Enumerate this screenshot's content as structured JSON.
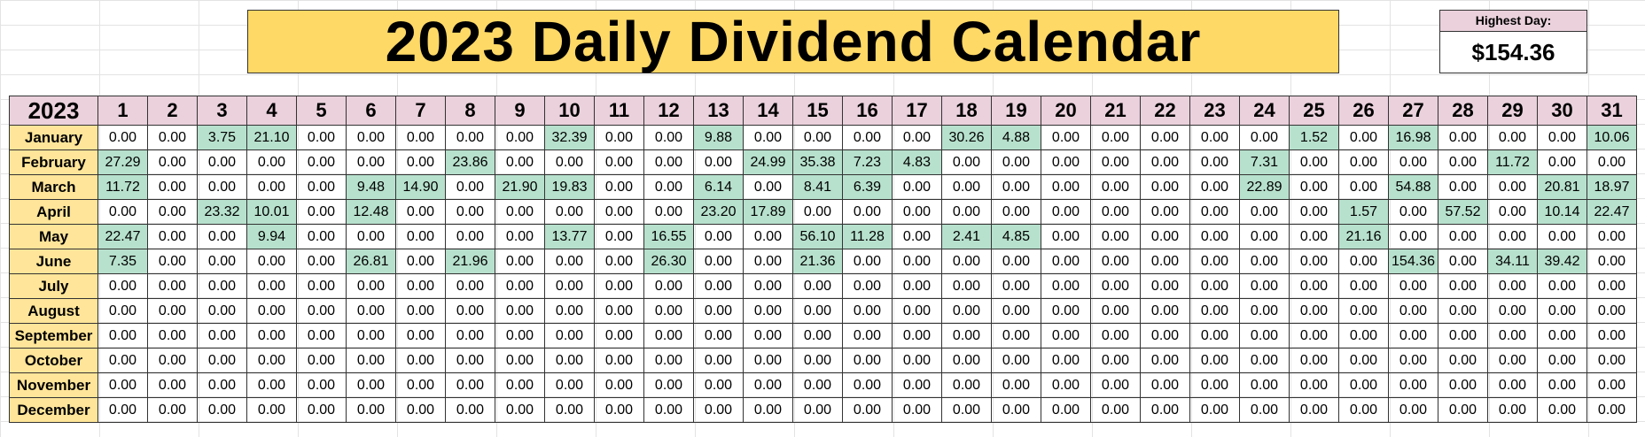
{
  "title": "2023 Daily Dividend Calendar",
  "highest": {
    "label": "Highest Day:",
    "value": "$154.36"
  },
  "calendar": {
    "year": "2023",
    "days": [
      "1",
      "2",
      "3",
      "4",
      "5",
      "6",
      "7",
      "8",
      "9",
      "10",
      "11",
      "12",
      "13",
      "14",
      "15",
      "16",
      "17",
      "18",
      "19",
      "20",
      "21",
      "22",
      "23",
      "24",
      "25",
      "26",
      "27",
      "28",
      "29",
      "30",
      "31"
    ],
    "highlight_color": "#b7e1cd",
    "header_color": "#ead1dc",
    "month_color": "#ffe599",
    "banner_color": "#ffd966",
    "months": [
      {
        "name": "January",
        "values": [
          "0.00",
          "0.00",
          "3.75",
          "21.10",
          "0.00",
          "0.00",
          "0.00",
          "0.00",
          "0.00",
          "32.39",
          "0.00",
          "0.00",
          "9.88",
          "0.00",
          "0.00",
          "0.00",
          "0.00",
          "30.26",
          "4.88",
          "0.00",
          "0.00",
          "0.00",
          "0.00",
          "0.00",
          "1.52",
          "0.00",
          "16.98",
          "0.00",
          "0.00",
          "0.00",
          "10.06"
        ]
      },
      {
        "name": "February",
        "values": [
          "27.29",
          "0.00",
          "0.00",
          "0.00",
          "0.00",
          "0.00",
          "0.00",
          "23.86",
          "0.00",
          "0.00",
          "0.00",
          "0.00",
          "0.00",
          "24.99",
          "35.38",
          "7.23",
          "4.83",
          "0.00",
          "0.00",
          "0.00",
          "0.00",
          "0.00",
          "0.00",
          "7.31",
          "0.00",
          "0.00",
          "0.00",
          "0.00",
          "11.72",
          "0.00",
          "0.00"
        ]
      },
      {
        "name": "March",
        "values": [
          "11.72",
          "0.00",
          "0.00",
          "0.00",
          "0.00",
          "9.48",
          "14.90",
          "0.00",
          "21.90",
          "19.83",
          "0.00",
          "0.00",
          "6.14",
          "0.00",
          "8.41",
          "6.39",
          "0.00",
          "0.00",
          "0.00",
          "0.00",
          "0.00",
          "0.00",
          "0.00",
          "22.89",
          "0.00",
          "0.00",
          "54.88",
          "0.00",
          "0.00",
          "20.81",
          "18.97"
        ]
      },
      {
        "name": "April",
        "values": [
          "0.00",
          "0.00",
          "23.32",
          "10.01",
          "0.00",
          "12.48",
          "0.00",
          "0.00",
          "0.00",
          "0.00",
          "0.00",
          "0.00",
          "23.20",
          "17.89",
          "0.00",
          "0.00",
          "0.00",
          "0.00",
          "0.00",
          "0.00",
          "0.00",
          "0.00",
          "0.00",
          "0.00",
          "0.00",
          "1.57",
          "0.00",
          "57.52",
          "0.00",
          "10.14",
          "22.47"
        ]
      },
      {
        "name": "May",
        "values": [
          "22.47",
          "0.00",
          "0.00",
          "9.94",
          "0.00",
          "0.00",
          "0.00",
          "0.00",
          "0.00",
          "13.77",
          "0.00",
          "16.55",
          "0.00",
          "0.00",
          "56.10",
          "11.28",
          "0.00",
          "2.41",
          "4.85",
          "0.00",
          "0.00",
          "0.00",
          "0.00",
          "0.00",
          "0.00",
          "21.16",
          "0.00",
          "0.00",
          "0.00",
          "0.00",
          "0.00"
        ]
      },
      {
        "name": "June",
        "values": [
          "7.35",
          "0.00",
          "0.00",
          "0.00",
          "0.00",
          "26.81",
          "0.00",
          "21.96",
          "0.00",
          "0.00",
          "0.00",
          "26.30",
          "0.00",
          "0.00",
          "21.36",
          "0.00",
          "0.00",
          "0.00",
          "0.00",
          "0.00",
          "0.00",
          "0.00",
          "0.00",
          "0.00",
          "0.00",
          "0.00",
          "154.36",
          "0.00",
          "34.11",
          "39.42",
          "0.00"
        ]
      },
      {
        "name": "July",
        "values": [
          "0.00",
          "0.00",
          "0.00",
          "0.00",
          "0.00",
          "0.00",
          "0.00",
          "0.00",
          "0.00",
          "0.00",
          "0.00",
          "0.00",
          "0.00",
          "0.00",
          "0.00",
          "0.00",
          "0.00",
          "0.00",
          "0.00",
          "0.00",
          "0.00",
          "0.00",
          "0.00",
          "0.00",
          "0.00",
          "0.00",
          "0.00",
          "0.00",
          "0.00",
          "0.00",
          "0.00"
        ]
      },
      {
        "name": "August",
        "values": [
          "0.00",
          "0.00",
          "0.00",
          "0.00",
          "0.00",
          "0.00",
          "0.00",
          "0.00",
          "0.00",
          "0.00",
          "0.00",
          "0.00",
          "0.00",
          "0.00",
          "0.00",
          "0.00",
          "0.00",
          "0.00",
          "0.00",
          "0.00",
          "0.00",
          "0.00",
          "0.00",
          "0.00",
          "0.00",
          "0.00",
          "0.00",
          "0.00",
          "0.00",
          "0.00",
          "0.00"
        ]
      },
      {
        "name": "September",
        "values": [
          "0.00",
          "0.00",
          "0.00",
          "0.00",
          "0.00",
          "0.00",
          "0.00",
          "0.00",
          "0.00",
          "0.00",
          "0.00",
          "0.00",
          "0.00",
          "0.00",
          "0.00",
          "0.00",
          "0.00",
          "0.00",
          "0.00",
          "0.00",
          "0.00",
          "0.00",
          "0.00",
          "0.00",
          "0.00",
          "0.00",
          "0.00",
          "0.00",
          "0.00",
          "0.00",
          "0.00"
        ]
      },
      {
        "name": "October",
        "values": [
          "0.00",
          "0.00",
          "0.00",
          "0.00",
          "0.00",
          "0.00",
          "0.00",
          "0.00",
          "0.00",
          "0.00",
          "0.00",
          "0.00",
          "0.00",
          "0.00",
          "0.00",
          "0.00",
          "0.00",
          "0.00",
          "0.00",
          "0.00",
          "0.00",
          "0.00",
          "0.00",
          "0.00",
          "0.00",
          "0.00",
          "0.00",
          "0.00",
          "0.00",
          "0.00",
          "0.00"
        ]
      },
      {
        "name": "November",
        "values": [
          "0.00",
          "0.00",
          "0.00",
          "0.00",
          "0.00",
          "0.00",
          "0.00",
          "0.00",
          "0.00",
          "0.00",
          "0.00",
          "0.00",
          "0.00",
          "0.00",
          "0.00",
          "0.00",
          "0.00",
          "0.00",
          "0.00",
          "0.00",
          "0.00",
          "0.00",
          "0.00",
          "0.00",
          "0.00",
          "0.00",
          "0.00",
          "0.00",
          "0.00",
          "0.00",
          "0.00"
        ]
      },
      {
        "name": "December",
        "values": [
          "0.00",
          "0.00",
          "0.00",
          "0.00",
          "0.00",
          "0.00",
          "0.00",
          "0.00",
          "0.00",
          "0.00",
          "0.00",
          "0.00",
          "0.00",
          "0.00",
          "0.00",
          "0.00",
          "0.00",
          "0.00",
          "0.00",
          "0.00",
          "0.00",
          "0.00",
          "0.00",
          "0.00",
          "0.00",
          "0.00",
          "0.00",
          "0.00",
          "0.00",
          "0.00",
          "0.00"
        ]
      }
    ]
  }
}
